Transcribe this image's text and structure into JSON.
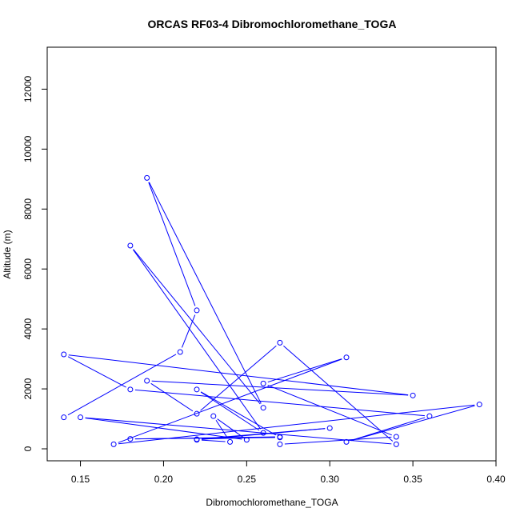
{
  "chart_data": {
    "type": "line",
    "title": "ORCAS RF03-4 Dibromochloromethane_TOGA",
    "xlabel": "Dibromochloromethane_TOGA",
    "ylabel": "Altitude (m)",
    "xlim": [
      0.13,
      0.4
    ],
    "ylim": [
      -400,
      13400
    ],
    "xticks": [
      0.15,
      0.2,
      0.25,
      0.3,
      0.35,
      0.4
    ],
    "xtick_labels": [
      "0.15",
      "0.20",
      "0.25",
      "0.30",
      "0.35",
      "0.40"
    ],
    "yticks": [
      0,
      2000,
      4000,
      6000,
      8000,
      10000,
      12000
    ],
    "ytick_labels": [
      "0",
      "2000",
      "4000",
      "6000",
      "8000",
      "10000",
      "12000"
    ],
    "colors": {
      "series": "#0000ff",
      "axes": "#000000"
    },
    "grid": false,
    "series": [
      {
        "markers": "open-circle",
        "points": [
          {
            "x": 0.27,
            "y": 150
          },
          {
            "x": 0.34,
            "y": 400
          },
          {
            "x": 0.26,
            "y": 2180
          },
          {
            "x": 0.31,
            "y": 3050
          },
          {
            "x": 0.17,
            "y": 150
          },
          {
            "x": 0.39,
            "y": 1480
          },
          {
            "x": 0.31,
            "y": 230
          },
          {
            "x": 0.36,
            "y": 1090
          },
          {
            "x": 0.18,
            "y": 1980
          },
          {
            "x": 0.14,
            "y": 3150
          },
          {
            "x": 0.35,
            "y": 1780
          },
          {
            "x": 0.19,
            "y": 2270
          },
          {
            "x": 0.22,
            "y": 1170
          },
          {
            "x": 0.27,
            "y": 3540
          },
          {
            "x": 0.34,
            "y": 150
          },
          {
            "x": 0.15,
            "y": 1050
          },
          {
            "x": 0.25,
            "y": 300
          },
          {
            "x": 0.23,
            "y": 1090
          },
          {
            "x": 0.24,
            "y": 230
          },
          {
            "x": 0.22,
            "y": 300
          },
          {
            "x": 0.3,
            "y": 690
          },
          {
            "x": 0.22,
            "y": 320
          },
          {
            "x": 0.27,
            "y": 400
          },
          {
            "x": 0.18,
            "y": 330
          },
          {
            "x": 0.27,
            "y": 380
          },
          {
            "x": 0.22,
            "y": 1980
          },
          {
            "x": 0.26,
            "y": 530
          },
          {
            "x": 0.18,
            "y": 6780
          },
          {
            "x": 0.26,
            "y": 1370
          },
          {
            "x": 0.19,
            "y": 9040
          },
          {
            "x": 0.22,
            "y": 4620
          },
          {
            "x": 0.21,
            "y": 3230
          },
          {
            "x": 0.14,
            "y": 1050
          }
        ]
      }
    ]
  }
}
